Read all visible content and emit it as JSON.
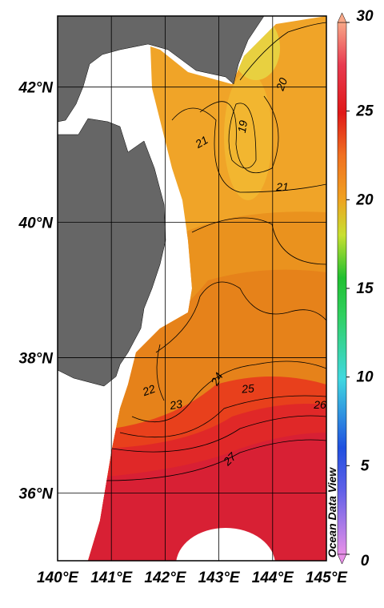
{
  "map": {
    "lonlim": [
      140,
      145.0
    ],
    "latlim": [
      35,
      43.05
    ],
    "xticks": [
      {
        "value": 140,
        "label": "140°E"
      },
      {
        "value": 141,
        "label": "141°E"
      },
      {
        "value": 142,
        "label": "142°E"
      },
      {
        "value": 143,
        "label": "143°E"
      },
      {
        "value": 144,
        "label": "144°E"
      },
      {
        "value": 145,
        "label": "145°E"
      }
    ],
    "yticks": [
      {
        "value": 36,
        "label": "36°N"
      },
      {
        "value": 38,
        "label": "38°N"
      },
      {
        "value": 40,
        "label": "40°N"
      },
      {
        "value": 42,
        "label": "42°N"
      }
    ],
    "grid": true,
    "contour_labels": [
      19,
      20,
      21,
      21,
      22,
      23,
      24,
      25,
      26,
      27
    ],
    "watermark": "Ocean Data View"
  },
  "colorbar": {
    "clim": [
      0,
      30
    ],
    "ticks": [
      0,
      5,
      10,
      15,
      20,
      25,
      30
    ]
  }
}
